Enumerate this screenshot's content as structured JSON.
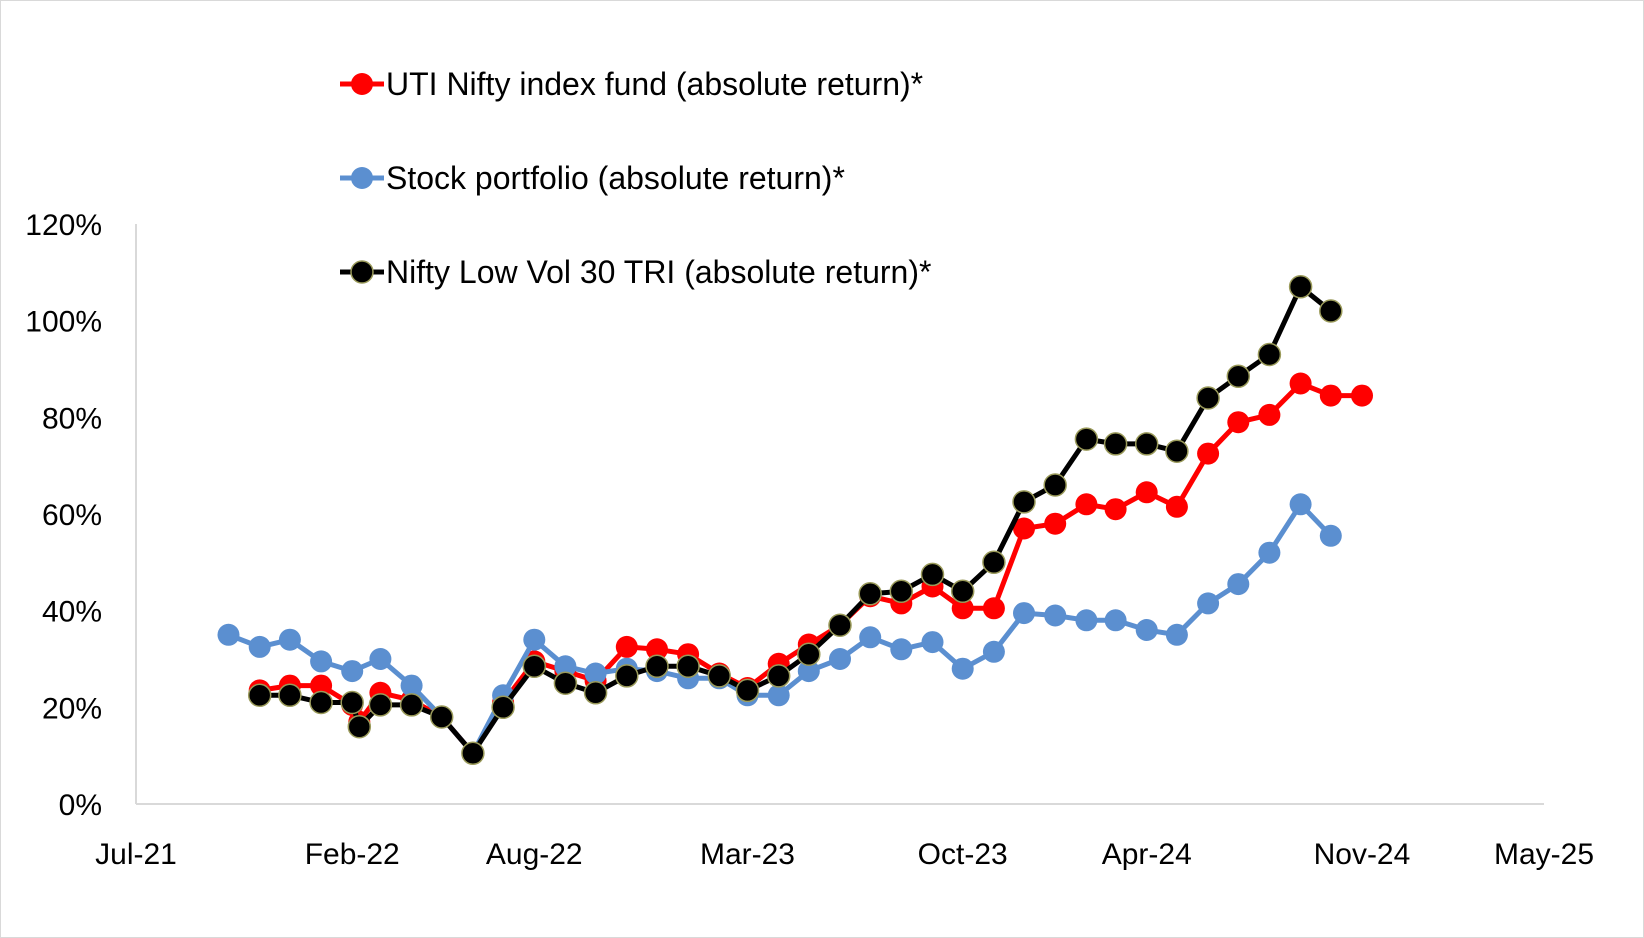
{
  "chart_data": {
    "type": "line",
    "title": "",
    "xlabel": "",
    "ylabel": "",
    "x_tick_labels": [
      "Jul-21",
      "Feb-22",
      "Aug-22",
      "Mar-23",
      "Oct-23",
      "Apr-24",
      "Nov-24",
      "May-25"
    ],
    "y_tick_labels": [
      "0%",
      "20%",
      "40%",
      "60%",
      "80%",
      "100%",
      "120%"
    ],
    "y_ticks": [
      0,
      20,
      40,
      60,
      80,
      100,
      120
    ],
    "ylim": [
      0,
      120
    ],
    "x_tick_dates": [
      "2021-07-01",
      "2022-02-01",
      "2022-08-01",
      "2023-03-01",
      "2023-10-01",
      "2024-04-01",
      "2024-11-01",
      "2025-05-01"
    ],
    "xlim": [
      "2021-07-01",
      "2025-05-01"
    ],
    "legend_position": "top-left",
    "grid": false,
    "series": [
      {
        "name": "UTI Nifty index fund (absolute return)*",
        "color": "#ff0000",
        "x": [
          "2021-11-01",
          "2021-12-01",
          "2022-01-01",
          "2022-02-01",
          "2022-02-08",
          "2022-03-01",
          "2022-04-01",
          "2022-05-01",
          "2022-06-01",
          "2022-07-01",
          "2022-08-01",
          "2022-09-01",
          "2022-10-01",
          "2022-11-01",
          "2022-12-01",
          "2023-01-01",
          "2023-02-01",
          "2023-03-01",
          "2023-04-01",
          "2023-05-01",
          "2023-06-01",
          "2023-07-01",
          "2023-08-01",
          "2023-09-01",
          "2023-10-01",
          "2023-11-01",
          "2023-12-01",
          "2024-01-01",
          "2024-02-01",
          "2024-03-01",
          "2024-04-01",
          "2024-05-01",
          "2024-06-01",
          "2024-07-01",
          "2024-08-01",
          "2024-09-01",
          "2024-10-01",
          "2024-11-01"
        ],
        "values": [
          23.5,
          24.5,
          24.5,
          20.5,
          17,
          23,
          21.5,
          18,
          10.5,
          21,
          29.5,
          27.5,
          25.5,
          32.5,
          32,
          31,
          27,
          24,
          29,
          33,
          37,
          43,
          41.5,
          45,
          40.5,
          40.5,
          57,
          58,
          62,
          61,
          64.5,
          61.5,
          72.5,
          79,
          80.5,
          87,
          84.5,
          84.5
        ]
      },
      {
        "name": "Stock portfolio (absolute return)*",
        "color": "#5b8fd0",
        "x": [
          "2021-10-01",
          "2021-11-01",
          "2021-12-01",
          "2022-01-01",
          "2022-02-01",
          "2022-03-01",
          "2022-04-01",
          "2022-05-01",
          "2022-06-01",
          "2022-07-01",
          "2022-08-01",
          "2022-09-01",
          "2022-10-01",
          "2022-11-01",
          "2022-12-01",
          "2023-01-01",
          "2023-02-01",
          "2023-03-01",
          "2023-04-01",
          "2023-05-01",
          "2023-06-01",
          "2023-07-01",
          "2023-08-01",
          "2023-09-01",
          "2023-10-01",
          "2023-11-01",
          "2023-12-01",
          "2024-01-01",
          "2024-02-01",
          "2024-03-01",
          "2024-04-01",
          "2024-05-01",
          "2024-06-01",
          "2024-07-01",
          "2024-08-01",
          "2024-09-01",
          "2024-10-01"
        ],
        "values": [
          35,
          32.5,
          34,
          29.5,
          27.5,
          30,
          24.5,
          18,
          10.5,
          22.5,
          34,
          28.5,
          27,
          28,
          27.5,
          26,
          26,
          22.5,
          22.5,
          27.5,
          30,
          34.5,
          32,
          33.5,
          28,
          31.5,
          39.5,
          39,
          38,
          38,
          36,
          35,
          41.5,
          45.5,
          52,
          62,
          55.5
        ]
      },
      {
        "name": "Nifty Low Vol 30 TRI (absolute return)*",
        "color": "#000000",
        "x": [
          "2021-11-01",
          "2021-12-01",
          "2022-01-01",
          "2022-02-01",
          "2022-02-08",
          "2022-03-01",
          "2022-04-01",
          "2022-05-01",
          "2022-06-01",
          "2022-07-01",
          "2022-08-01",
          "2022-09-01",
          "2022-10-01",
          "2022-11-01",
          "2022-12-01",
          "2023-01-01",
          "2023-02-01",
          "2023-03-01",
          "2023-04-01",
          "2023-05-01",
          "2023-06-01",
          "2023-07-01",
          "2023-08-01",
          "2023-09-01",
          "2023-10-01",
          "2023-11-01",
          "2023-12-01",
          "2024-01-01",
          "2024-02-01",
          "2024-03-01",
          "2024-04-01",
          "2024-05-01",
          "2024-06-01",
          "2024-07-01",
          "2024-08-01",
          "2024-09-01",
          "2024-10-01"
        ],
        "values": [
          22.5,
          22.5,
          21,
          21,
          16,
          20.5,
          20.5,
          18,
          10.5,
          20,
          28.5,
          25,
          23,
          26.5,
          28.5,
          28.5,
          26.5,
          23.5,
          26.5,
          31,
          37,
          43.5,
          44,
          47.5,
          44,
          50,
          62.5,
          66,
          75.5,
          74.5,
          74.5,
          73,
          84,
          88.5,
          93,
          107,
          102
        ]
      }
    ]
  }
}
